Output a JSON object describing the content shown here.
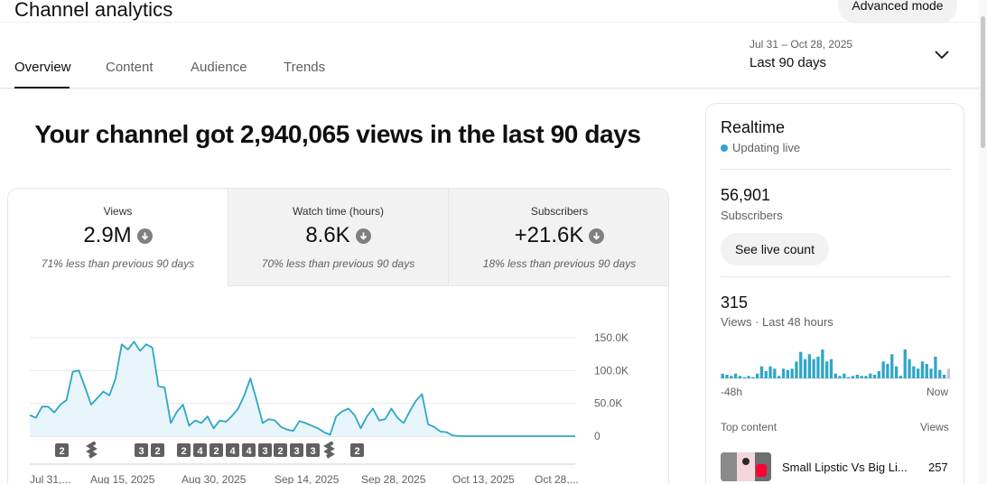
{
  "header": {
    "title": "Channel analytics",
    "advanced_mode_label": "Advanced mode"
  },
  "tabs": [
    {
      "label": "Overview",
      "active": true
    },
    {
      "label": "Content",
      "active": false
    },
    {
      "label": "Audience",
      "active": false
    },
    {
      "label": "Trends",
      "active": false
    }
  ],
  "date_range": {
    "sub": "Jul 31 – Oct 28, 2025",
    "main": "Last 90 days"
  },
  "headline": "Your channel got 2,940,065 views in the last 90 days",
  "metrics": [
    {
      "label": "Views",
      "value": "2.9M",
      "note": "71% less than previous 90 days"
    },
    {
      "label": "Watch time (hours)",
      "value": "8.6K",
      "note": "70% less than previous 90 days"
    },
    {
      "label": "Subscribers",
      "value": "+21.6K",
      "note": "18% less than previous 90 days"
    }
  ],
  "chart_data": {
    "type": "area",
    "series": [
      {
        "values": [
          32000,
          28000,
          45000,
          45000,
          36000,
          48000,
          55000,
          98000,
          100000,
          75000,
          48000,
          58000,
          68000,
          62000,
          88000,
          140000,
          132000,
          144000,
          130000,
          140000,
          135000,
          76000,
          74000,
          20000,
          37000,
          48000,
          16000,
          24000,
          20000,
          30000,
          12000,
          24000,
          22000,
          31000,
          42000,
          62000,
          88000,
          55000,
          20000,
          26000,
          24000,
          14000,
          10000,
          8000,
          23000,
          20000,
          16000,
          12000,
          6000,
          2000,
          30000,
          38000,
          42000,
          32000,
          12000,
          30000,
          42000,
          24000,
          26000,
          42000,
          28000,
          20000,
          38000,
          54000,
          64000,
          18000,
          14000,
          7000,
          6000,
          1000,
          0,
          0,
          0,
          0,
          0,
          0,
          0,
          0,
          0,
          0,
          0,
          0,
          0,
          0,
          0,
          0,
          0,
          0,
          0,
          0
        ]
      }
    ],
    "y_ticks": [
      "150.0K",
      "100.0K",
      "50.0K",
      "0"
    ],
    "ylim": [
      0,
      150000
    ],
    "x_ticks": [
      "Jul 31,...",
      "Aug 15, 2025",
      "Aug 30, 2025",
      "Sep 14, 2025",
      "Sep 28, 2025",
      "Oct 13, 2025",
      "Oct 28,..."
    ],
    "markers": [
      "2",
      "shorts",
      "3",
      "2",
      "2",
      "4",
      "2",
      "4",
      "4",
      "3",
      "2",
      "3",
      "3",
      "shorts",
      "2"
    ],
    "grid": true,
    "line_color": "#2fa6c7",
    "fill_color": "#e8f5fa"
  },
  "realtime": {
    "title": "Realtime",
    "status": "Updating live",
    "subscribers_value": "56,901",
    "subscribers_label": "Subscribers",
    "live_count_label": "See live count",
    "views_value": "315",
    "views_label": "Views · Last 48 hours",
    "axis_left": "-48h",
    "axis_right": "Now",
    "bars": [
      4,
      3,
      2,
      4,
      2,
      1,
      2,
      1,
      4,
      10,
      6,
      10,
      8,
      2,
      8,
      7,
      8,
      14,
      22,
      16,
      20,
      16,
      18,
      24,
      14,
      16,
      4,
      2,
      4,
      1,
      2,
      3,
      2,
      2,
      4,
      3,
      6,
      14,
      12,
      20,
      10,
      2,
      24,
      16,
      10,
      8,
      14,
      12,
      8,
      18,
      7,
      3,
      8
    ],
    "top_content_label": "Top content",
    "views_col_label": "Views",
    "top_item": {
      "title": "Small Lipstic Vs Big Li...",
      "views": "257"
    }
  }
}
